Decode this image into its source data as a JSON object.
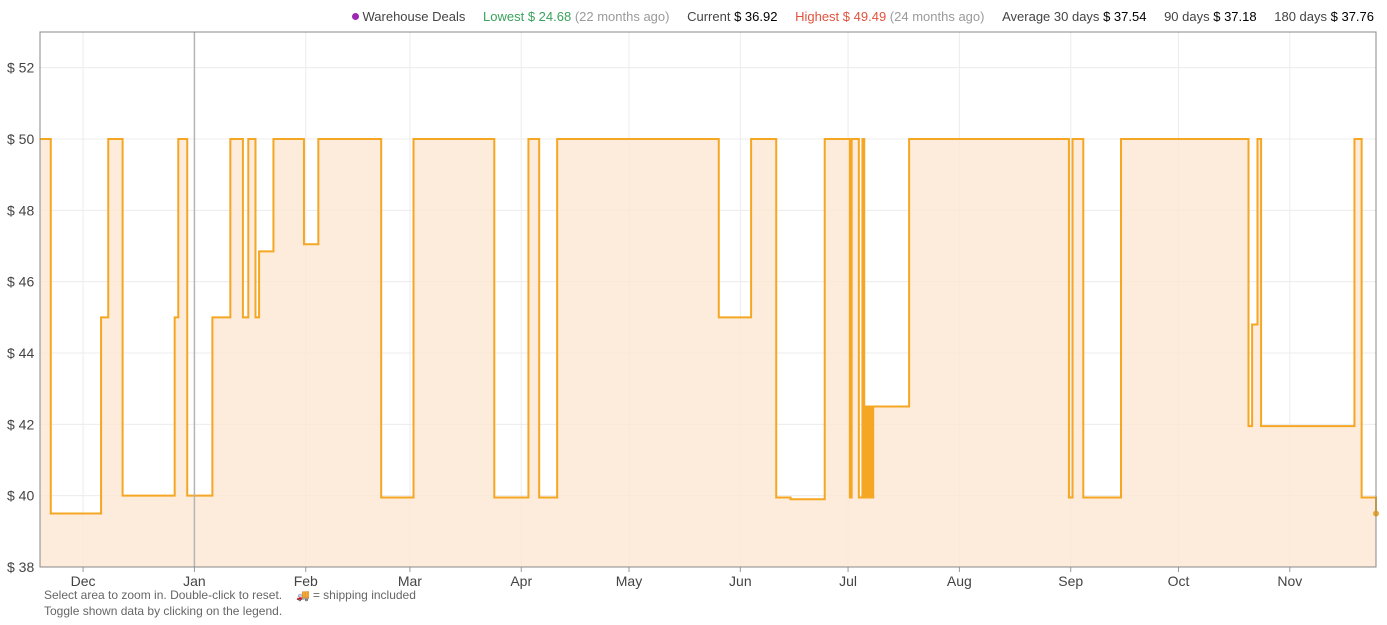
{
  "legend": {
    "warehouse": {
      "label": "Warehouse Deals",
      "color": "#9c27b0"
    },
    "lowest": {
      "label": "Lowest",
      "value": "$ 24.68",
      "note": "(22 months ago)",
      "color": "#3aa35b"
    },
    "current": {
      "label": "Current",
      "value": "$ 36.92"
    },
    "highest": {
      "label": "Highest",
      "value": "$ 49.49",
      "note": "(24 months ago)",
      "color": "#e0533f"
    },
    "average": {
      "label": "Average 30 days",
      "value": "$ 37.54"
    },
    "avg90": {
      "label": "90 days",
      "value": "$ 37.18"
    },
    "avg180": {
      "label": "180 days",
      "value": "$ 37.76"
    }
  },
  "footer": {
    "line1": "Select area to zoom in. Double-click to reset.",
    "shipping": "= shipping included",
    "line2": "Toggle shown data by clicking on the legend."
  },
  "chart_data": {
    "type": "area",
    "step": true,
    "ylim": [
      38,
      53
    ],
    "yticks": [
      38,
      40,
      42,
      44,
      46,
      48,
      50,
      52
    ],
    "ytick_labels": [
      "$ 38",
      "$ 40",
      "$ 42",
      "$ 44",
      "$ 46",
      "$ 48",
      "$ 50",
      "$ 52"
    ],
    "xlim": [
      0,
      372
    ],
    "months": [
      {
        "label": "Dec",
        "x": 12
      },
      {
        "label": "Jan",
        "x": 43
      },
      {
        "label": "Feb",
        "x": 74
      },
      {
        "label": "Mar",
        "x": 103
      },
      {
        "label": "Apr",
        "x": 134
      },
      {
        "label": "May",
        "x": 164
      },
      {
        "label": "Jun",
        "x": 195
      },
      {
        "label": "Jul",
        "x": 225
      },
      {
        "label": "Aug",
        "x": 256
      },
      {
        "label": "Sep",
        "x": 287
      },
      {
        "label": "Oct",
        "x": 317
      },
      {
        "label": "Nov",
        "x": 348
      }
    ],
    "marker_x": 43,
    "series": [
      {
        "color": "#f5a623",
        "fill": "#fde7d2",
        "points": [
          [
            0,
            50
          ],
          [
            3,
            39.5
          ],
          [
            17,
            45
          ],
          [
            19,
            50
          ],
          [
            23,
            40
          ],
          [
            37.5,
            45
          ],
          [
            38.5,
            50
          ],
          [
            41,
            40
          ],
          [
            48,
            45
          ],
          [
            53,
            50
          ],
          [
            56.5,
            45
          ],
          [
            58,
            50
          ],
          [
            60,
            45
          ],
          [
            61,
            46.85
          ],
          [
            65,
            50
          ],
          [
            73.5,
            47.05
          ],
          [
            77.5,
            50
          ],
          [
            95,
            39.95
          ],
          [
            104,
            50
          ],
          [
            126.5,
            39.95
          ],
          [
            136,
            50
          ],
          [
            139,
            39.95
          ],
          [
            144,
            50
          ],
          [
            189,
            45
          ],
          [
            198,
            50
          ],
          [
            205,
            39.95
          ],
          [
            209,
            39.9
          ],
          [
            218.5,
            50
          ],
          [
            225.5,
            39.95
          ],
          [
            226,
            50
          ],
          [
            228,
            39.95
          ],
          [
            229,
            50
          ],
          [
            229.5,
            39.95
          ],
          [
            230,
            42.5
          ],
          [
            230.5,
            39.95
          ],
          [
            231,
            42.5
          ],
          [
            231.5,
            39.95
          ],
          [
            232,
            42.5
          ],
          [
            242,
            50
          ],
          [
            286.5,
            39.95
          ],
          [
            287.5,
            50
          ],
          [
            290.5,
            39.95
          ],
          [
            301,
            50
          ],
          [
            336.5,
            41.95
          ],
          [
            337.5,
            44.8
          ],
          [
            339,
            50
          ],
          [
            340,
            41.95
          ],
          [
            366,
            50
          ],
          [
            368,
            39.95
          ],
          [
            372,
            39.5
          ]
        ]
      }
    ]
  }
}
